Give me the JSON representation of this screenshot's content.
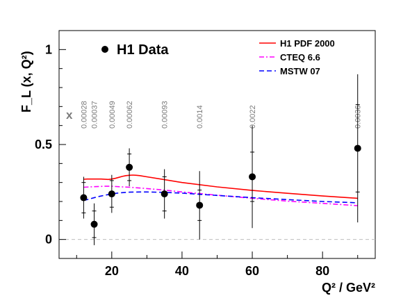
{
  "chart_data": {
    "type": "scatter",
    "title": "",
    "xlabel": "Q² / GeV²",
    "ylabel": "F_L (x, Q²)",
    "xlim": [
      5,
      95
    ],
    "ylim": [
      -0.1,
      1.1
    ],
    "grid": false,
    "x_ticks": [
      20,
      40,
      60,
      80
    ],
    "y_ticks": [
      0,
      0.5,
      1
    ],
    "x_tick_labels": [
      "20",
      "40",
      "60",
      "80"
    ],
    "y_tick_labels": [
      "0",
      "0.5",
      "1"
    ],
    "x_annotation_label": "x",
    "x_annotations": [
      {
        "q2": 12,
        "label": "0.00028"
      },
      {
        "q2": 15,
        "label": "0.00037"
      },
      {
        "q2": 20,
        "label": "0.00049"
      },
      {
        "q2": 25,
        "label": "0.00062"
      },
      {
        "q2": 35,
        "label": "0.00093"
      },
      {
        "q2": 45,
        "label": "0.0014"
      },
      {
        "q2": 60,
        "label": "0.0022"
      },
      {
        "q2": 90,
        "label": "0.0036"
      }
    ],
    "data_label": "H1 Data",
    "data_points": [
      {
        "x": 12,
        "y": 0.22,
        "stat": 0.08,
        "tot": 0.11
      },
      {
        "x": 15,
        "y": 0.08,
        "stat": 0.07,
        "tot": 0.11
      },
      {
        "x": 20,
        "y": 0.24,
        "stat": 0.07,
        "tot": 0.1
      },
      {
        "x": 25,
        "y": 0.38,
        "stat": 0.07,
        "tot": 0.1
      },
      {
        "x": 35,
        "y": 0.24,
        "stat": 0.09,
        "tot": 0.13
      },
      {
        "x": 45,
        "y": 0.18,
        "stat": 0.08,
        "tot": 0.18
      },
      {
        "x": 60,
        "y": 0.33,
        "stat": 0.13,
        "tot": 0.27
      },
      {
        "x": 90,
        "y": 0.48,
        "stat": 0.23,
        "tot": 0.39
      }
    ],
    "series": [
      {
        "name": "H1 PDF 2000",
        "color": "#ff0000",
        "dash": "solid",
        "x": [
          12,
          13,
          15,
          17,
          19,
          20,
          21,
          22,
          23,
          24,
          25,
          26,
          27,
          28,
          30,
          35,
          40,
          50,
          60,
          70,
          80,
          90
        ],
        "y": [
          0.317,
          0.318,
          0.318,
          0.318,
          0.316,
          0.318,
          0.322,
          0.327,
          0.332,
          0.336,
          0.338,
          0.339,
          0.338,
          0.336,
          0.33,
          0.315,
          0.3,
          0.277,
          0.258,
          0.243,
          0.229,
          0.217
        ]
      },
      {
        "name": "CTEQ 6.6",
        "color": "#ff00ff",
        "dash": "dash-dot",
        "x": [
          12,
          15,
          18,
          20,
          23,
          25,
          30,
          35,
          40,
          50,
          60,
          70,
          80,
          90
        ],
        "y": [
          0.275,
          0.278,
          0.28,
          0.28,
          0.277,
          0.275,
          0.268,
          0.26,
          0.25,
          0.233,
          0.217,
          0.202,
          0.19,
          0.178
        ]
      },
      {
        "name": "MSTW 07",
        "color": "#0000ff",
        "dash": "dashed",
        "x": [
          12,
          14,
          16,
          18,
          20,
          22,
          25,
          28,
          30,
          35,
          40,
          50,
          60,
          70,
          80,
          90
        ],
        "y": [
          0.205,
          0.215,
          0.225,
          0.233,
          0.24,
          0.245,
          0.249,
          0.25,
          0.25,
          0.248,
          0.244,
          0.232,
          0.22,
          0.21,
          0.2,
          0.193
        ]
      }
    ]
  }
}
